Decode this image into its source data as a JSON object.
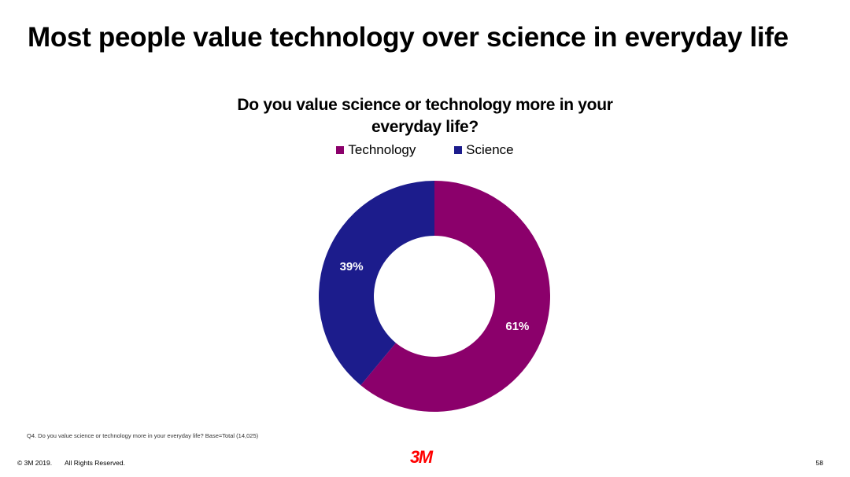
{
  "slide": {
    "title": "Most people value technology over science in everyday life",
    "footnote": "Q4. Do you value science or technology more in your everyday life? Base=Total (14,025)",
    "copyright": "© 3M 2019.",
    "rights": "All Rights Reserved.",
    "logo_text": "3M",
    "logo_color": "#ff0000",
    "page_number": "58"
  },
  "chart_data": {
    "type": "pie",
    "variant": "donut",
    "title": "Do you value science or technology more in your everyday life?",
    "legend_position": "top",
    "categories": [
      "Technology",
      "Science"
    ],
    "values": [
      61,
      39
    ],
    "labels": [
      "61%",
      "39%"
    ],
    "colors": [
      "#8b006b",
      "#1c1c8c"
    ]
  }
}
